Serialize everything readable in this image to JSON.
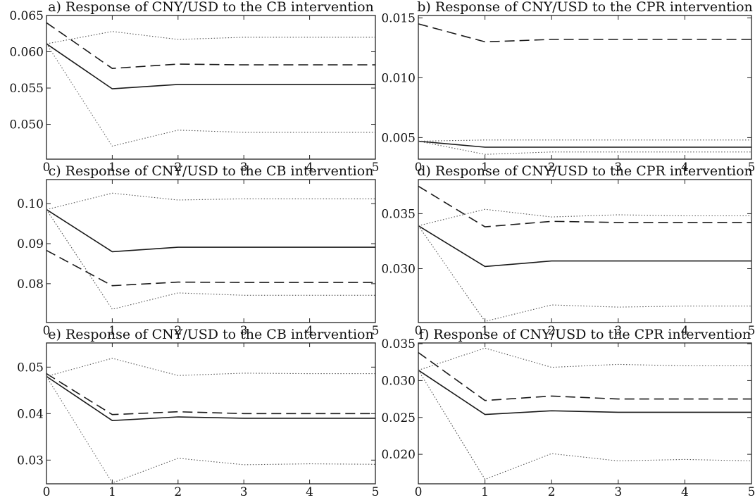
{
  "chart_data": [
    {
      "type": "line",
      "title": "a) Response of CNY/USD to the CB intervention",
      "x": [
        0,
        1,
        2,
        3,
        4,
        5
      ],
      "xlim": [
        0,
        5
      ],
      "ylim": [
        0.0452,
        0.065
      ],
      "x_ticks": [
        "0",
        "1",
        "2",
        "3",
        "4",
        "5"
      ],
      "y_ticks": [
        {
          "value": 0.05,
          "label": "0.050"
        },
        {
          "value": 0.055,
          "label": "0.055"
        },
        {
          "value": 0.06,
          "label": "0.060"
        },
        {
          "value": 0.065,
          "label": "0.065"
        }
      ],
      "series": [
        {
          "style": "solid",
          "values": [
            0.0611,
            0.0549,
            0.0555,
            0.0555,
            0.0555,
            0.0555
          ]
        },
        {
          "style": "dashed",
          "values": [
            0.064,
            0.0577,
            0.0583,
            0.0582,
            0.0582,
            0.0582
          ]
        },
        {
          "style": "dotted",
          "values": [
            0.0611,
            0.0628,
            0.0617,
            0.062,
            0.062,
            0.062
          ]
        },
        {
          "style": "dotted",
          "values": [
            0.0611,
            0.047,
            0.0492,
            0.0489,
            0.0489,
            0.0489
          ]
        }
      ]
    },
    {
      "type": "line",
      "title": "b) Response of CNY/USD to the CPR intervention",
      "x": [
        0,
        1,
        2,
        3,
        4,
        5
      ],
      "xlim": [
        0,
        5
      ],
      "ylim": [
        0.0032,
        0.0152
      ],
      "x_ticks": [
        "0",
        "1",
        "2",
        "3",
        "4",
        "5"
      ],
      "y_ticks": [
        {
          "value": 0.005,
          "label": "0.005"
        },
        {
          "value": 0.01,
          "label": "0.010"
        },
        {
          "value": 0.015,
          "label": "0.015"
        }
      ],
      "series": [
        {
          "style": "solid",
          "values": [
            0.0047,
            0.0042,
            0.0042,
            0.0042,
            0.0042,
            0.0042
          ]
        },
        {
          "style": "dashed",
          "values": [
            0.0145,
            0.013,
            0.0132,
            0.0132,
            0.0132,
            0.0132
          ]
        },
        {
          "style": "dotted",
          "values": [
            0.0047,
            0.0048,
            0.0048,
            0.0048,
            0.0048,
            0.0048
          ]
        },
        {
          "style": "dotted",
          "values": [
            0.0047,
            0.0036,
            0.0038,
            0.0038,
            0.0038,
            0.0038
          ]
        }
      ]
    },
    {
      "type": "line",
      "title": "c) Response of CNY/USD to the CB intervention",
      "x": [
        0,
        1,
        2,
        3,
        4,
        5
      ],
      "xlim": [
        0,
        5
      ],
      "ylim": [
        0.0703,
        0.106
      ],
      "x_ticks": [
        "0",
        "1",
        "2",
        "3",
        "4",
        "5"
      ],
      "y_ticks": [
        {
          "value": 0.08,
          "label": "0.080"
        },
        {
          "value": 0.09,
          "label": "0.090"
        },
        {
          "value": 0.1,
          "label": "0.100"
        }
      ],
      "y_tick_labels": [
        "0.08",
        "0.09",
        "0.10"
      ],
      "series": [
        {
          "style": "solid",
          "values": [
            0.0985,
            0.088,
            0.0891,
            0.0891,
            0.0891,
            0.0891
          ]
        },
        {
          "style": "dashed",
          "values": [
            0.0883,
            0.0795,
            0.0804,
            0.0803,
            0.0803,
            0.0803
          ]
        },
        {
          "style": "dotted",
          "values": [
            0.0985,
            0.1026,
            0.1009,
            0.1012,
            0.1012,
            0.1012
          ]
        },
        {
          "style": "dotted",
          "values": [
            0.0985,
            0.0736,
            0.0777,
            0.0771,
            0.0771,
            0.0771
          ]
        }
      ]
    },
    {
      "type": "line",
      "title": "d) Response of CNY/USD to the CPR intervention",
      "x": [
        0,
        1,
        2,
        3,
        4,
        5
      ],
      "xlim": [
        0,
        5
      ],
      "ylim": [
        0.0251,
        0.0381
      ],
      "x_ticks": [
        "0",
        "1",
        "2",
        "3",
        "4",
        "5"
      ],
      "y_ticks": [
        {
          "value": 0.03,
          "label": "0.030"
        },
        {
          "value": 0.035,
          "label": "0.035"
        }
      ],
      "series": [
        {
          "style": "solid",
          "values": [
            0.0339,
            0.0302,
            0.0307,
            0.0307,
            0.0307,
            0.0307
          ]
        },
        {
          "style": "dashed",
          "values": [
            0.0375,
            0.0338,
            0.0343,
            0.0342,
            0.0342,
            0.0342
          ]
        },
        {
          "style": "dotted",
          "values": [
            0.0339,
            0.0354,
            0.0347,
            0.0349,
            0.0348,
            0.0348
          ]
        },
        {
          "style": "dotted",
          "values": [
            0.0339,
            0.0252,
            0.0267,
            0.0265,
            0.0266,
            0.0266
          ]
        }
      ]
    },
    {
      "type": "line",
      "title": "e) Response of CNY/USD to the CB intervention",
      "x": [
        0,
        1,
        2,
        3,
        4,
        5
      ],
      "xlim": [
        0,
        5
      ],
      "ylim": [
        0.0249,
        0.0552
      ],
      "x_ticks": [
        "0",
        "1",
        "2",
        "3",
        "4",
        "5"
      ],
      "y_ticks": [
        {
          "value": 0.03,
          "label": "0.030"
        },
        {
          "value": 0.04,
          "label": "0.040"
        },
        {
          "value": 0.05,
          "label": "0.050"
        }
      ],
      "y_tick_labels": [
        "0.03",
        "0.04",
        "0.05"
      ],
      "series": [
        {
          "style": "solid",
          "values": [
            0.048,
            0.0385,
            0.0393,
            0.039,
            0.039,
            0.039
          ]
        },
        {
          "style": "dashed",
          "values": [
            0.0486,
            0.0398,
            0.0404,
            0.04,
            0.04,
            0.04
          ]
        },
        {
          "style": "dotted",
          "values": [
            0.048,
            0.0519,
            0.0482,
            0.0487,
            0.0486,
            0.0486
          ]
        },
        {
          "style": "dotted",
          "values": [
            0.048,
            0.0251,
            0.0304,
            0.029,
            0.0292,
            0.0291
          ]
        }
      ]
    },
    {
      "type": "line",
      "title": "f) Response of CNY/USD to the CPR intervention",
      "x": [
        0,
        1,
        2,
        3,
        4,
        5
      ],
      "xlim": [
        0,
        5
      ],
      "ylim": [
        0.016,
        0.0351
      ],
      "x_ticks": [
        "0",
        "1",
        "2",
        "3",
        "4",
        "5"
      ],
      "y_ticks": [
        {
          "value": 0.02,
          "label": "0.020"
        },
        {
          "value": 0.025,
          "label": "0.025"
        },
        {
          "value": 0.03,
          "label": "0.030"
        },
        {
          "value": 0.035,
          "label": "0.035"
        }
      ],
      "series": [
        {
          "style": "solid",
          "values": [
            0.0314,
            0.0254,
            0.0259,
            0.0257,
            0.0257,
            0.0257
          ]
        },
        {
          "style": "dashed",
          "values": [
            0.0338,
            0.0273,
            0.0279,
            0.0275,
            0.0275,
            0.0275
          ]
        },
        {
          "style": "dotted",
          "values": [
            0.0314,
            0.0344,
            0.0318,
            0.0322,
            0.032,
            0.032
          ]
        },
        {
          "style": "dotted",
          "values": [
            0.0314,
            0.0166,
            0.0201,
            0.0191,
            0.0193,
            0.0191
          ]
        }
      ]
    }
  ]
}
